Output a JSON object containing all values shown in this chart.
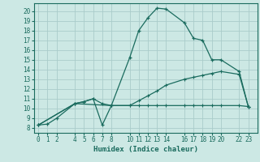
{
  "xlabel": "Humidex (Indice chaleur)",
  "background_color": "#cce8e4",
  "grid_color": "#aaccca",
  "line_color": "#1a6b5e",
  "xticks": [
    0,
    1,
    2,
    4,
    5,
    6,
    7,
    8,
    10,
    11,
    12,
    13,
    14,
    16,
    17,
    18,
    19,
    20,
    22,
    23
  ],
  "yticks": [
    8,
    9,
    10,
    11,
    12,
    13,
    14,
    15,
    16,
    17,
    18,
    19,
    20
  ],
  "ylim": [
    7.5,
    20.8
  ],
  "xlim": [
    -0.5,
    24.0
  ],
  "line1_x": [
    0,
    1,
    2,
    4,
    5,
    6,
    7,
    8,
    10,
    11,
    12,
    13,
    14,
    16,
    17,
    18,
    19,
    20,
    22,
    23
  ],
  "line1_y": [
    8.3,
    8.4,
    9.0,
    10.5,
    10.7,
    11.0,
    8.3,
    10.3,
    15.2,
    18.0,
    19.3,
    20.3,
    20.2,
    18.8,
    17.2,
    17.0,
    15.0,
    15.0,
    13.8,
    10.2
  ],
  "line2_x": [
    0,
    4,
    5,
    6,
    7,
    8,
    10,
    11,
    12,
    13,
    14,
    16,
    17,
    18,
    19,
    20,
    22,
    23
  ],
  "line2_y": [
    8.3,
    10.5,
    10.7,
    11.0,
    10.5,
    10.3,
    10.3,
    10.3,
    10.3,
    10.3,
    10.3,
    10.3,
    10.3,
    10.3,
    10.3,
    10.3,
    10.3,
    10.2
  ],
  "line3_x": [
    0,
    4,
    8,
    10,
    11,
    12,
    13,
    14,
    16,
    17,
    18,
    19,
    20,
    22,
    23
  ],
  "line3_y": [
    8.3,
    10.5,
    10.3,
    10.3,
    10.8,
    11.3,
    11.8,
    12.4,
    13.0,
    13.2,
    13.4,
    13.6,
    13.8,
    13.5,
    10.2
  ]
}
